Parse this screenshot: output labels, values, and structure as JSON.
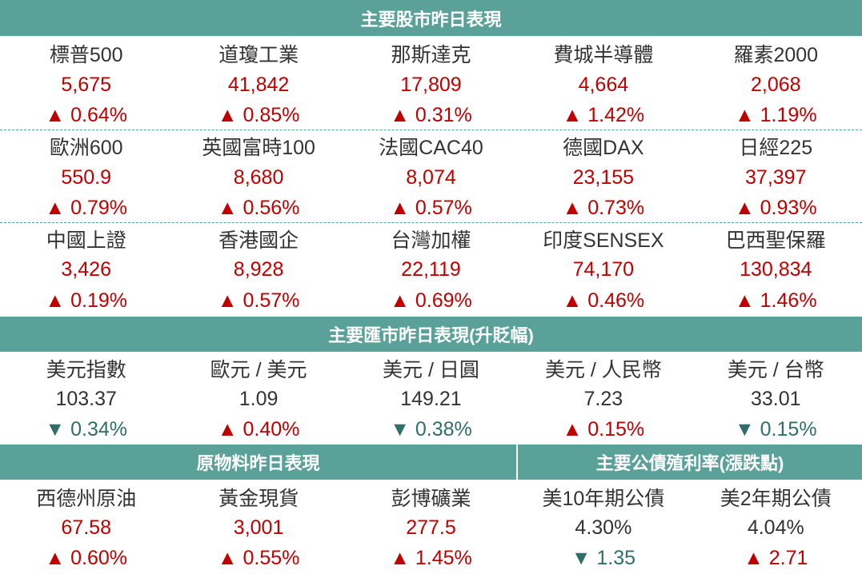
{
  "stocks": {
    "title": "主要股市昨日表現",
    "items": [
      {
        "name": "標普500",
        "value": "5,675",
        "change": "▲ 0.64%"
      },
      {
        "name": "道瓊工業",
        "value": "41,842",
        "change": "▲ 0.85%"
      },
      {
        "name": "那斯達克",
        "value": "17,809",
        "change": "▲ 0.31%"
      },
      {
        "name": "費城半導體",
        "value": "4,664",
        "change": "▲ 1.42%"
      },
      {
        "name": "羅素2000",
        "value": "2,068",
        "change": "▲ 1.19%"
      },
      {
        "name": "歐洲600",
        "value": "550.9",
        "change": "▲ 0.79%"
      },
      {
        "name": "英國富時100",
        "value": "8,680",
        "change": "▲ 0.56%"
      },
      {
        "name": "法國CAC40",
        "value": "8,074",
        "change": "▲ 0.57%"
      },
      {
        "name": "德國DAX",
        "value": "23,155",
        "change": "▲ 0.73%"
      },
      {
        "name": "日經225",
        "value": "37,397",
        "change": "▲ 0.93%"
      },
      {
        "name": "中國上證",
        "value": "3,426",
        "change": "▲ 0.19%"
      },
      {
        "name": "香港國企",
        "value": "8,928",
        "change": "▲ 0.57%"
      },
      {
        "name": "台灣加權",
        "value": "22,119",
        "change": "▲ 0.69%"
      },
      {
        "name": "印度SENSEX",
        "value": "74,170",
        "change": "▲ 0.46%"
      },
      {
        "name": "巴西聖保羅",
        "value": "130,834",
        "change": "▲ 1.46%"
      }
    ]
  },
  "fx": {
    "title": "主要匯市昨日表現(升貶幅)",
    "items": [
      {
        "name": "美元指數",
        "value": "103.37",
        "change": "▼ 0.34%"
      },
      {
        "name": "歐元 / 美元",
        "value": "1.09",
        "change": "▲ 0.40%"
      },
      {
        "name": "美元 / 日圓",
        "value": "149.21",
        "change": "▼ 0.38%"
      },
      {
        "name": "美元 / 人民幣",
        "value": "7.23",
        "change": "▲ 0.15%"
      },
      {
        "name": "美元 / 台幣",
        "value": "33.01",
        "change": "▼ 0.15%"
      }
    ]
  },
  "commodities": {
    "title": "原物料昨日表現",
    "items": [
      {
        "name": "西德州原油",
        "value": "67.58",
        "change": "▲ 0.60%"
      },
      {
        "name": "黃金現貨",
        "value": "3,001",
        "change": "▲ 0.55%"
      },
      {
        "name": "彭博礦業",
        "value": "277.5",
        "change": "▲ 1.45%"
      }
    ]
  },
  "bonds": {
    "title": "主要公債殖利率(漲跌點)",
    "items": [
      {
        "name": "美10年期公債",
        "value": "4.30%",
        "change": "▼ 1.35"
      },
      {
        "name": "美2年期公債",
        "value": "4.04%",
        "change": "▲ 2.71"
      }
    ]
  },
  "colors": {
    "header": "#5aa19a",
    "up": "#c00000",
    "down": "#2f6f69",
    "text": "#333333"
  }
}
